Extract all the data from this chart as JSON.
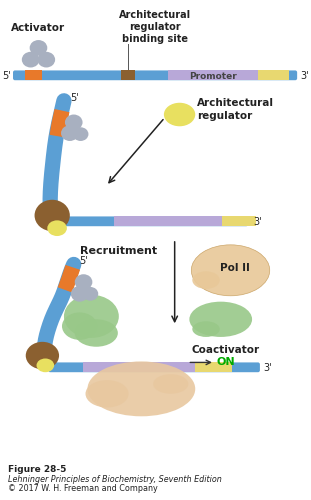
{
  "bg_color": "#ffffff",
  "fig_label": "Figure 28-5",
  "fig_subtitle": "Lehninger Principles of Biochemistry, Seventh Edition",
  "fig_copyright": "© 2017 W. H. Freeman and Company",
  "colors": {
    "dna_blue": "#5b9fd4",
    "orange": "#e8792a",
    "brown": "#8B6030",
    "promoter_purple": "#b8a8d8",
    "yellow_end": "#e8d870",
    "activator_gray": "#a8b0c0",
    "arch_reg_yellow": "#e8e060",
    "green_coactivator": "#98c888",
    "pol_peach": "#e8c898",
    "large_peach": "#e8c8a0",
    "pink_med": "#c8a0a8",
    "arrow_color": "#222222",
    "text_dark": "#222222",
    "green_on": "#00aa00"
  },
  "annotations": {
    "activator": "Activator",
    "arch_binding": "Architectural\nregulator\nbinding site",
    "promoter": "Promoter",
    "arch_reg": "Architectural\nregulator",
    "recruitment": "Recruitment",
    "pol_ii": "Pol II",
    "coactivator": "Coactivator",
    "on": "ON"
  }
}
